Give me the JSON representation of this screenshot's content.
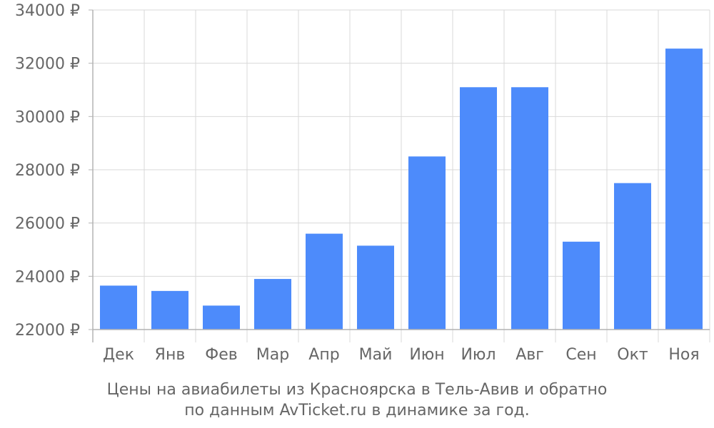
{
  "chart_data": {
    "type": "bar",
    "categories": [
      "Дек",
      "Янв",
      "Фев",
      "Мар",
      "Апр",
      "Май",
      "Июн",
      "Июл",
      "Авг",
      "Сен",
      "Окт",
      "Ноя"
    ],
    "values": [
      23650,
      23450,
      22900,
      23900,
      25600,
      25150,
      28500,
      31100,
      31100,
      25300,
      27500,
      32550
    ],
    "ylim": [
      22000,
      34000
    ],
    "yticks": [
      22000,
      24000,
      26000,
      28000,
      30000,
      32000,
      34000
    ],
    "ytick_labels": [
      "22000 ₽",
      "24000 ₽",
      "26000 ₽",
      "28000 ₽",
      "30000 ₽",
      "32000 ₽",
      "34000 ₽"
    ],
    "title": "",
    "xlabel": "",
    "ylabel": "",
    "grid": true,
    "legend": "none",
    "bar_color": "#4d8bfb",
    "grid_color": "#d9d9d9",
    "axis_color": "#b3b3b3",
    "text_color": "#666666"
  },
  "caption": {
    "line1": "Цены на авиабилеты из Красноярска в Тель-Авив и обратно",
    "line2": "по данным AvTicket.ru в динамике за год."
  }
}
